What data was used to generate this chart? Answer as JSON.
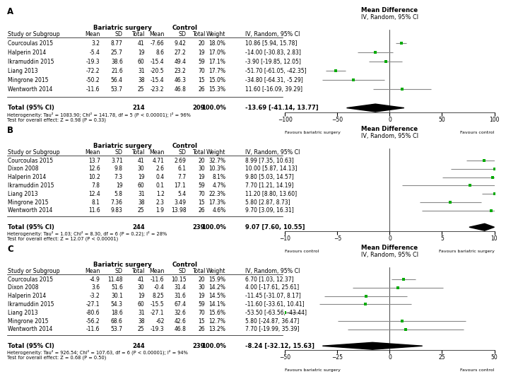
{
  "panels": [
    {
      "label": "A",
      "studies": [
        {
          "name": "Courcoulas 2015",
          "bs_mean": "3.2",
          "bs_sd": "8.77",
          "bs_n": 41,
          "c_mean": "-7.66",
          "c_sd": "9.42",
          "c_n": 20,
          "weight": "18.0%",
          "md": 10.86,
          "ci_lo": 5.94,
          "ci_hi": 15.78
        },
        {
          "name": "Halperin 2014",
          "bs_mean": "-5.4",
          "bs_sd": "25.7",
          "bs_n": 19,
          "c_mean": "8.6",
          "c_sd": "27.2",
          "c_n": 19,
          "weight": "17.0%",
          "md": -14.0,
          "ci_lo": -30.83,
          "ci_hi": 2.83
        },
        {
          "name": "Ikramuddin 2015",
          "bs_mean": "-19.3",
          "bs_sd": "38.6",
          "bs_n": 60,
          "c_mean": "-15.4",
          "c_sd": "49.4",
          "c_n": 59,
          "weight": "17.1%",
          "md": -3.9,
          "ci_lo": -19.85,
          "ci_hi": 12.05
        },
        {
          "name": "Liang 2013",
          "bs_mean": "-72.2",
          "bs_sd": "21.6",
          "bs_n": 31,
          "c_mean": "-20.5",
          "c_sd": "23.2",
          "c_n": 70,
          "weight": "17.7%",
          "md": -51.7,
          "ci_lo": -61.05,
          "ci_hi": -42.35
        },
        {
          "name": "Mingrone 2015",
          "bs_mean": "-50.2",
          "bs_sd": "56.4",
          "bs_n": 38,
          "c_mean": "-15.4",
          "c_sd": "46.3",
          "c_n": 15,
          "weight": "15.0%",
          "md": -34.8,
          "ci_lo": -64.31,
          "ci_hi": -5.29
        },
        {
          "name": "Wentworth 2014",
          "bs_mean": "-11.6",
          "bs_sd": "53.7",
          "bs_n": 25,
          "c_mean": "-23.2",
          "c_sd": "46.8",
          "c_n": 26,
          "weight": "15.3%",
          "md": 11.6,
          "ci_lo": -16.09,
          "ci_hi": 39.29
        }
      ],
      "total_bs_n": 214,
      "total_c_n": 209,
      "total_md": -13.69,
      "total_ci_lo": -41.14,
      "total_ci_hi": 13.77,
      "heterogeneity": "Heterogeneity: Tau² = 1083.90; Chi² = 141.78, df = 5 (P < 0.00001); I² = 96%",
      "overall_effect": "Test for overall effect: Z = 0.98 (P = 0.33)",
      "axis_min": -100,
      "axis_max": 100,
      "axis_ticks": [
        -100,
        -50,
        0,
        50,
        100
      ],
      "favours_left": "Favours bariatric surgery",
      "favours_right": "Favours control"
    },
    {
      "label": "B",
      "studies": [
        {
          "name": "Courcoulas 2015",
          "bs_mean": "13.7",
          "bs_sd": "3.71",
          "bs_n": 41,
          "c_mean": "4.71",
          "c_sd": "2.69",
          "c_n": 20,
          "weight": "32.7%",
          "md": 8.99,
          "ci_lo": 7.35,
          "ci_hi": 10.63
        },
        {
          "name": "Dixon 2008",
          "bs_mean": "12.6",
          "bs_sd": "9.8",
          "bs_n": 30,
          "c_mean": "2.6",
          "c_sd": "6.1",
          "c_n": 30,
          "weight": "10.3%",
          "md": 10.0,
          "ci_lo": 5.87,
          "ci_hi": 14.13
        },
        {
          "name": "Halperin 2014",
          "bs_mean": "10.2",
          "bs_sd": "7.3",
          "bs_n": 19,
          "c_mean": "0.4",
          "c_sd": "7.7",
          "c_n": 19,
          "weight": "8.1%",
          "md": 9.8,
          "ci_lo": 5.03,
          "ci_hi": 14.57
        },
        {
          "name": "Ikramuddin 2015",
          "bs_mean": "7.8",
          "bs_sd": "19",
          "bs_n": 60,
          "c_mean": "0.1",
          "c_sd": "17.1",
          "c_n": 59,
          "weight": "4.7%",
          "md": 7.7,
          "ci_lo": 1.21,
          "ci_hi": 14.19
        },
        {
          "name": "Liang 2013",
          "bs_mean": "12.4",
          "bs_sd": "5.8",
          "bs_n": 31,
          "c_mean": "1.2",
          "c_sd": "5.4",
          "c_n": 70,
          "weight": "22.3%",
          "md": 11.2,
          "ci_lo": 8.8,
          "ci_hi": 13.6
        },
        {
          "name": "Mingrone 2015",
          "bs_mean": "8.1",
          "bs_sd": "7.36",
          "bs_n": 38,
          "c_mean": "2.3",
          "c_sd": "3.49",
          "c_n": 15,
          "weight": "17.3%",
          "md": 5.8,
          "ci_lo": 2.87,
          "ci_hi": 8.73
        },
        {
          "name": "Wentworth 2014",
          "bs_mean": "11.6",
          "bs_sd": "9.83",
          "bs_n": 25,
          "c_mean": "1.9",
          "c_sd": "13.98",
          "c_n": 26,
          "weight": "4.6%",
          "md": 9.7,
          "ci_lo": 3.09,
          "ci_hi": 16.31
        }
      ],
      "total_bs_n": 244,
      "total_c_n": 239,
      "total_md": 9.07,
      "total_ci_lo": 7.6,
      "total_ci_hi": 10.55,
      "heterogeneity": "Heterogeneity: Tau² = 1.03; Chi² = 8.30, df = 6 (P = 0.22); I² = 28%",
      "overall_effect": "Test for overall effect: Z = 12.07 (P < 0.00001)",
      "axis_min": -10,
      "axis_max": 10,
      "axis_ticks": [
        -10,
        -5,
        0,
        5,
        10
      ],
      "favours_left": "Favours control",
      "favours_right": "Favours bariatric surgery"
    },
    {
      "label": "C",
      "studies": [
        {
          "name": "Courcoulas 2015",
          "bs_mean": "-4.9",
          "bs_sd": "11.48",
          "bs_n": 41,
          "c_mean": "-11.6",
          "c_sd": "10.15",
          "c_n": 20,
          "weight": "15.9%",
          "md": 6.7,
          "ci_lo": 1.03,
          "ci_hi": 12.37
        },
        {
          "name": "Dixon 2008",
          "bs_mean": "3.6",
          "bs_sd": "51.6",
          "bs_n": 30,
          "c_mean": "-0.4",
          "c_sd": "31.4",
          "c_n": 30,
          "weight": "14.2%",
          "md": 4.0,
          "ci_lo": -17.61,
          "ci_hi": 25.61
        },
        {
          "name": "Halperin 2014",
          "bs_mean": "-3.2",
          "bs_sd": "30.1",
          "bs_n": 19,
          "c_mean": "8.25",
          "c_sd": "31.6",
          "c_n": 19,
          "weight": "14.5%",
          "md": -11.45,
          "ci_lo": -31.07,
          "ci_hi": 8.17
        },
        {
          "name": "Ikramuddin 2015",
          "bs_mean": "-27.1",
          "bs_sd": "54.3",
          "bs_n": 60,
          "c_mean": "-15.5",
          "c_sd": "67.4",
          "c_n": 59,
          "weight": "14.1%",
          "md": -11.6,
          "ci_lo": -33.61,
          "ci_hi": 10.41
        },
        {
          "name": "Liang 2013",
          "bs_mean": "-80.6",
          "bs_sd": "18.6",
          "bs_n": 31,
          "c_mean": "-27.1",
          "c_sd": "32.6",
          "c_n": 70,
          "weight": "15.6%",
          "md": -53.5,
          "ci_lo": -63.56,
          "ci_hi": -43.44
        },
        {
          "name": "Mingrone 2015",
          "bs_mean": "-56.2",
          "bs_sd": "68.6",
          "bs_n": 38,
          "c_mean": "-62",
          "c_sd": "42.6",
          "c_n": 15,
          "weight": "12.7%",
          "md": 5.8,
          "ci_lo": -24.87,
          "ci_hi": 36.47
        },
        {
          "name": "Wentworth 2014",
          "bs_mean": "-11.6",
          "bs_sd": "53.7",
          "bs_n": 25,
          "c_mean": "-19.3",
          "c_sd": "46.8",
          "c_n": 26,
          "weight": "13.2%",
          "md": 7.7,
          "ci_lo": -19.99,
          "ci_hi": 35.39
        }
      ],
      "total_bs_n": 244,
      "total_c_n": 239,
      "total_md": -8.24,
      "total_ci_lo": -32.12,
      "total_ci_hi": 15.63,
      "heterogeneity": "Heterogeneity: Tau² = 926.54; Chi² = 107.63, df = 6 (P < 0.00001); I² = 94%",
      "overall_effect": "Test for overall effect: Z = 0.68 (P = 0.50)",
      "axis_min": -50,
      "axis_max": 50,
      "axis_ticks": [
        -50,
        -25,
        0,
        25,
        50
      ],
      "favours_left": "Favours bariatric surgery",
      "favours_right": "Favours control"
    }
  ],
  "bg_color": "#ffffff",
  "text_color": "#000000",
  "line_color": "#000000",
  "ci_line_color": "#888888",
  "point_color": "#00aa00",
  "diamond_color": "#000000",
  "font_size": 6.0,
  "header_font_size": 6.2
}
